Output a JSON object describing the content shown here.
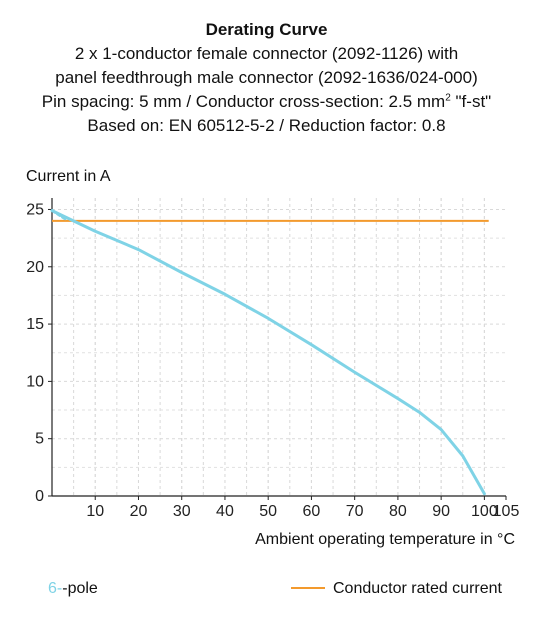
{
  "chart_data": {
    "type": "line",
    "title_lines": [
      "Derating Curve",
      "2 x 1-conductor female connector (2092-1126) with",
      "panel feedthrough male connector (2092-1636/024-000)",
      "Pin spacing: 5 mm / Conductor cross-section: 2.5 mm",
      "Based on: EN 60512-5-2 / Reduction factor: 0.8"
    ],
    "title_superscript": "2",
    "title_suffix": " \"f-st\"",
    "ylabel": "Current in A",
    "xlabel": "Ambient operating temperature in °C",
    "xlim": [
      0,
      105
    ],
    "ylim": [
      0,
      26
    ],
    "xticks": [
      10,
      20,
      30,
      40,
      50,
      60,
      70,
      80,
      90,
      100,
      105
    ],
    "yticks": [
      0,
      5,
      10,
      15,
      20,
      25
    ],
    "grid": true,
    "series": [
      {
        "name": "6-pole",
        "color": "#7fd3e6",
        "x": [
          0,
          10,
          20,
          30,
          40,
          50,
          60,
          70,
          80,
          85,
          90,
          95,
          100
        ],
        "y": [
          24.9,
          23.1,
          21.5,
          19.5,
          17.6,
          15.5,
          13.2,
          10.8,
          8.5,
          7.3,
          5.8,
          3.5,
          0.2
        ],
        "dashed_start": [
          {
            "x": 0.1,
            "y": 24.9
          },
          {
            "x": 3,
            "y": 24.2
          }
        ]
      },
      {
        "name": "Conductor rated current",
        "color": "#f39a2d",
        "x": [
          0,
          101
        ],
        "y": [
          24,
          24
        ]
      }
    ],
    "legend": {
      "left_prefix": "6",
      "left_suffix": "-pole",
      "right_label": "Conductor rated current"
    }
  }
}
